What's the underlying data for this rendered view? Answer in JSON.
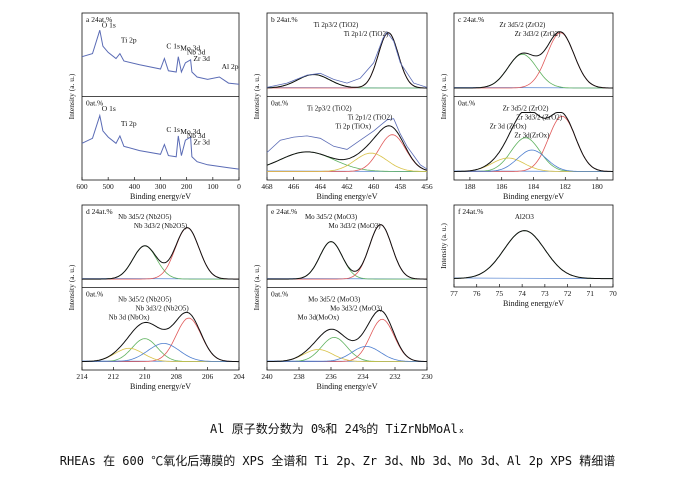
{
  "caption": {
    "line1": "Al 原子数分数为 0%和 24%的 TiZrNbMoAlₓ",
    "line2": "RHEAs 在 600 ℃氧化后薄膜的 XPS 全谱和 Ti 2p、Zr 3d、Nb 3d、Mo 3d、Al 2p XPS 精细谱"
  },
  "colors": {
    "measured": "#5a6bb5",
    "envelope": "#111111",
    "red": "#e05a5a",
    "green": "#5fb25f",
    "yellow": "#d9c34a",
    "blue": "#4f7fcf",
    "dark_green": "#4f8a3a"
  },
  "chart_data": [
    {
      "id": "a",
      "type": "line",
      "letter": "a",
      "xlabel": "Binding energy/eV",
      "ylabel": "Intensity (a. u.)",
      "xlim": [
        600,
        0
      ],
      "ticks": [
        "600",
        "500",
        "400",
        "300",
        "200",
        "100",
        "0"
      ],
      "subplots": [
        {
          "label": "24at.%",
          "peaks": [
            "O 1s",
            "Ti 2p",
            "C 1s",
            "Mo 3d",
            "Nb 3d",
            "Zr 3d",
            "Al 2p"
          ],
          "series": [
            {
              "x": [
                600,
                560,
                532,
                520,
                500,
                470,
                455,
                440,
                380,
                300,
                285,
                270,
                240,
                232,
                220,
                205,
                185,
                180,
                160,
                120,
                75,
                40,
                0
              ],
              "y": [
                0.55,
                0.6,
                0.98,
                0.72,
                0.62,
                0.52,
                0.6,
                0.48,
                0.42,
                0.35,
                0.52,
                0.32,
                0.3,
                0.55,
                0.3,
                0.45,
                0.5,
                0.3,
                0.22,
                0.18,
                0.22,
                0.12,
                0.1
              ]
            }
          ]
        },
        {
          "label": "0at.%",
          "peaks": [
            "O 1s",
            "Ti 2p",
            "C 1s",
            "Mo 3d",
            "Nb 3d",
            "Zr 3d"
          ],
          "series": [
            {
              "x": [
                600,
                560,
                532,
                520,
                500,
                470,
                455,
                440,
                380,
                300,
                285,
                270,
                240,
                232,
                220,
                205,
                185,
                180,
                160,
                120,
                40,
                0
              ],
              "y": [
                0.5,
                0.58,
                0.95,
                0.7,
                0.6,
                0.5,
                0.62,
                0.45,
                0.38,
                0.32,
                0.48,
                0.3,
                0.28,
                0.62,
                0.3,
                0.55,
                0.6,
                0.28,
                0.2,
                0.15,
                0.1,
                0.08
              ]
            }
          ]
        }
      ]
    },
    {
      "id": "b",
      "type": "line",
      "letter": "b",
      "xlabel": "Binding energy/eV",
      "ylabel": "Intensity (a. u.)",
      "xlim": [
        468,
        456
      ],
      "ticks": [
        "468",
        "466",
        "464",
        "462",
        "460",
        "458",
        "456"
      ],
      "subplots": [
        {
          "label": "24at.%",
          "annotations": [
            "Ti 2p3/2 (TiO2)",
            "Ti 2p1/2 (TiO2)"
          ],
          "series": [
            {
              "name": "measured",
              "x": [
                468,
                466.5,
                465,
                464,
                463,
                462,
                461,
                460,
                459.3,
                459,
                458.5,
                458,
                457,
                456
              ],
              "y": [
                0.05,
                0.12,
                0.25,
                0.28,
                0.18,
                0.12,
                0.2,
                0.45,
                0.85,
                0.95,
                0.8,
                0.45,
                0.12,
                0.05
              ]
            },
            {
              "name": "Ti 2p1/2",
              "center": 464.5,
              "amp": 0.22,
              "width": 1.2
            },
            {
              "name": "Ti 2p3/2",
              "center": 458.9,
              "amp": 0.9,
              "width": 0.75
            }
          ]
        },
        {
          "label": "0at.%",
          "annotations": [
            "Ti 2p3/2 (TiO2)",
            "Ti 2p1/2 (TiO2)",
            "Ti 2p (TiOx)"
          ],
          "series": [
            {
              "name": "measured",
              "x": [
                468,
                467,
                466,
                465,
                464,
                463,
                462,
                461,
                460,
                459,
                458.5,
                458,
                457.5,
                457,
                456.5,
                456
              ],
              "y": [
                0.35,
                0.55,
                0.6,
                0.62,
                0.58,
                0.45,
                0.4,
                0.55,
                0.7,
                0.88,
                0.9,
                0.65,
                0.45,
                0.3,
                0.15,
                0.08
              ]
            },
            {
              "name": "Ti 2p1/2",
              "center": 465,
              "amp": 0.32,
              "width": 2.0
            },
            {
              "name": "Ti 2p3/2",
              "center": 458.6,
              "amp": 0.6,
              "width": 1.0
            },
            {
              "name": "Ti 2p (TiOx)",
              "center": 460.2,
              "amp": 0.3,
              "width": 1.2
            }
          ]
        }
      ]
    },
    {
      "id": "c",
      "type": "line",
      "letter": "c",
      "xlabel": "Binding energy/eV",
      "ylabel": "Intensity (a. u.)",
      "xlim": [
        189,
        179
      ],
      "ticks": [
        "188",
        "186",
        "184",
        "182",
        "180"
      ],
      "subplots": [
        {
          "label": "24at.%",
          "annotations": [
            "Zr 3d5/2 (ZrO2)",
            "Zr 3d3/2 (ZrO2)"
          ],
          "series": [
            {
              "name": "Zr 3d3/2",
              "center": 184.7,
              "amp": 0.55,
              "width": 0.9
            },
            {
              "name": "Zr 3d5/2",
              "center": 182.3,
              "amp": 0.9,
              "width": 0.85
            }
          ]
        },
        {
          "label": "0at.%",
          "annotations": [
            "Zr 3d5/2 (ZrO2)",
            "Zr 3d3/2 (ZrO2)",
            "Zr 3d (ZrOx)",
            "Zr 3d(ZrOx)"
          ],
          "series": [
            {
              "name": "Zr 3d3/2",
              "center": 184.5,
              "amp": 0.55,
              "width": 0.9
            },
            {
              "name": "Zr 3d5/2",
              "center": 182.2,
              "amp": 0.9,
              "width": 0.85
            },
            {
              "name": "Zr 3d (ZrOx) a",
              "center": 185.6,
              "amp": 0.22,
              "width": 1.0
            },
            {
              "name": "Zr 3d (ZrOx) b",
              "center": 184.1,
              "amp": 0.35,
              "width": 0.9
            }
          ]
        }
      ]
    },
    {
      "id": "d",
      "type": "line",
      "letter": "d",
      "xlabel": "Binding energy/eV",
      "ylabel": "Intensity (a. u.)",
      "xlim": [
        214,
        204
      ],
      "ticks": [
        "214",
        "212",
        "210",
        "208",
        "206",
        "204"
      ],
      "subplots": [
        {
          "label": "24at.%",
          "annotations": [
            "Nb 3d5/2 (Nb2O5)",
            "Nb 3d3/2 (Nb2O5)"
          ],
          "series": [
            {
              "name": "Nb 3d3/2",
              "center": 210.0,
              "amp": 0.55,
              "width": 0.75
            },
            {
              "name": "Nb 3d5/2",
              "center": 207.3,
              "amp": 0.85,
              "width": 0.75
            }
          ]
        },
        {
          "label": "0at.%",
          "annotations": [
            "Nb 3d5/2 (Nb2O5)",
            "Nb 3d3/2 (Nb2O5)",
            "Nb 3d (NbOx)"
          ],
          "series": [
            {
              "name": "Nb 3d3/2",
              "center": 210.0,
              "amp": 0.38,
              "width": 0.8
            },
            {
              "name": "Nb 3d5/2",
              "center": 207.2,
              "amp": 0.72,
              "width": 0.8
            },
            {
              "name": "Nb 3d (NbOx) a",
              "center": 211.0,
              "amp": 0.22,
              "width": 0.9
            },
            {
              "name": "Nb 3d (NbOx) b",
              "center": 208.8,
              "amp": 0.3,
              "width": 1.0
            }
          ]
        }
      ]
    },
    {
      "id": "e",
      "type": "line",
      "letter": "e",
      "xlabel": "Binding energy/eV",
      "ylabel": "Intensity (a. u.)",
      "xlim": [
        240,
        230
      ],
      "ticks": [
        "240",
        "238",
        "236",
        "234",
        "232",
        "230"
      ],
      "subplots": [
        {
          "label": "24at.%",
          "annotations": [
            "Mo 3d5/2 (MoO3)",
            "Mo 3d3/2 (MoO3)"
          ],
          "series": [
            {
              "name": "Mo 3d3/2",
              "center": 236.0,
              "amp": 0.62,
              "width": 0.7
            },
            {
              "name": "Mo 3d5/2",
              "center": 232.9,
              "amp": 0.9,
              "width": 0.7
            }
          ]
        },
        {
          "label": "0at.%",
          "annotations": [
            "Mo 3d5/2 (MoO3)",
            "Mo 3d3/2 (MoO3)",
            "Mo 3d(MoOx)"
          ],
          "series": [
            {
              "name": "Mo 3d3/2",
              "center": 235.8,
              "amp": 0.4,
              "width": 0.8
            },
            {
              "name": "Mo 3d5/2",
              "center": 232.8,
              "amp": 0.7,
              "width": 0.75
            },
            {
              "name": "Mo 3d (MoOx) a",
              "center": 236.8,
              "amp": 0.2,
              "width": 0.9
            },
            {
              "name": "Mo 3d (MoOx) b",
              "center": 233.8,
              "amp": 0.25,
              "width": 0.9
            }
          ]
        }
      ]
    },
    {
      "id": "f",
      "type": "line",
      "letter": "f",
      "xlabel": "Binding energy/eV",
      "ylabel": "Intensity (a. u.)",
      "xlim": [
        77,
        70
      ],
      "ticks": [
        "77",
        "76",
        "75",
        "74",
        "73",
        "72",
        "71",
        "70"
      ],
      "subplots": [
        {
          "label": "24at.%",
          "annotations": [
            "Al2O3"
          ],
          "series": [
            {
              "name": "Al 2p",
              "center": 73.9,
              "amp": 0.8,
              "width": 0.9
            }
          ]
        }
      ]
    }
  ]
}
